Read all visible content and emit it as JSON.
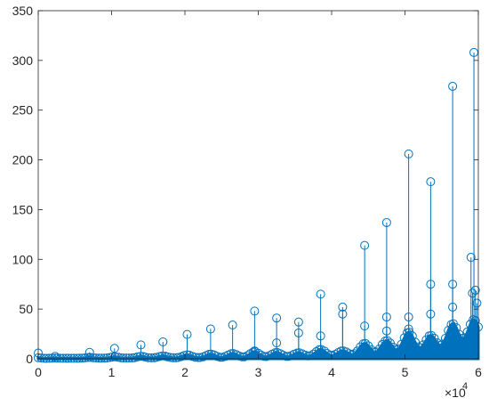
{
  "chart_data": {
    "type": "stem",
    "title": "",
    "xlabel": "",
    "ylabel": "",
    "xlim": [
      0,
      60000
    ],
    "ylim": [
      0,
      350
    ],
    "x_ticks": [
      0,
      10000,
      20000,
      30000,
      40000,
      50000,
      60000
    ],
    "x_tick_labels": [
      "0",
      "1",
      "2",
      "3",
      "4",
      "5",
      "6"
    ],
    "x_multiplier": "×10",
    "x_multiplier_exp": "4",
    "y_ticks": [
      0,
      50,
      100,
      150,
      200,
      250,
      300,
      350
    ],
    "y_tick_labels": [
      "0",
      "50",
      "100",
      "150",
      "200",
      "250",
      "300",
      "350"
    ],
    "grid": false,
    "series_color": "#0072BD",
    "marker": "circle",
    "baseline": 0,
    "peaks": [
      {
        "x": 0,
        "y": 5.8
      },
      {
        "x": 2300,
        "y": 2.5
      },
      {
        "x": 7000,
        "y": 6.5
      },
      {
        "x": 10400,
        "y": 10.5
      },
      {
        "x": 14000,
        "y": 14
      },
      {
        "x": 17000,
        "y": 17
      },
      {
        "x": 20300,
        "y": 24.5
      },
      {
        "x": 23500,
        "y": 30
      },
      {
        "x": 26500,
        "y": 34
      },
      {
        "x": 29500,
        "y": 48
      },
      {
        "x": 32500,
        "y": 41
      },
      {
        "x": 35500,
        "y": 37
      },
      {
        "x": 38500,
        "y": 65
      },
      {
        "x": 41500,
        "y": 52
      },
      {
        "x": 44500,
        "y": 114
      },
      {
        "x": 47500,
        "y": 137
      },
      {
        "x": 50500,
        "y": 206
      },
      {
        "x": 53500,
        "y": 178
      },
      {
        "x": 56500,
        "y": 274
      },
      {
        "x": 59400,
        "y": 308
      }
    ],
    "secondary_points": [
      {
        "x": 29500,
        "y": 8
      },
      {
        "x": 32500,
        "y": 16
      },
      {
        "x": 35500,
        "y": 26
      },
      {
        "x": 38500,
        "y": 23
      },
      {
        "x": 41500,
        "y": 45
      },
      {
        "x": 44500,
        "y": 33
      },
      {
        "x": 47500,
        "y": 42
      },
      {
        "x": 47500,
        "y": 28
      },
      {
        "x": 50500,
        "y": 42
      },
      {
        "x": 50500,
        "y": 30
      },
      {
        "x": 53500,
        "y": 75
      },
      {
        "x": 53500,
        "y": 45
      },
      {
        "x": 56500,
        "y": 75
      },
      {
        "x": 56500,
        "y": 52
      },
      {
        "x": 59000,
        "y": 102
      },
      {
        "x": 59200,
        "y": 66
      },
      {
        "x": 59600,
        "y": 69
      },
      {
        "x": 59800,
        "y": 56
      }
    ]
  }
}
